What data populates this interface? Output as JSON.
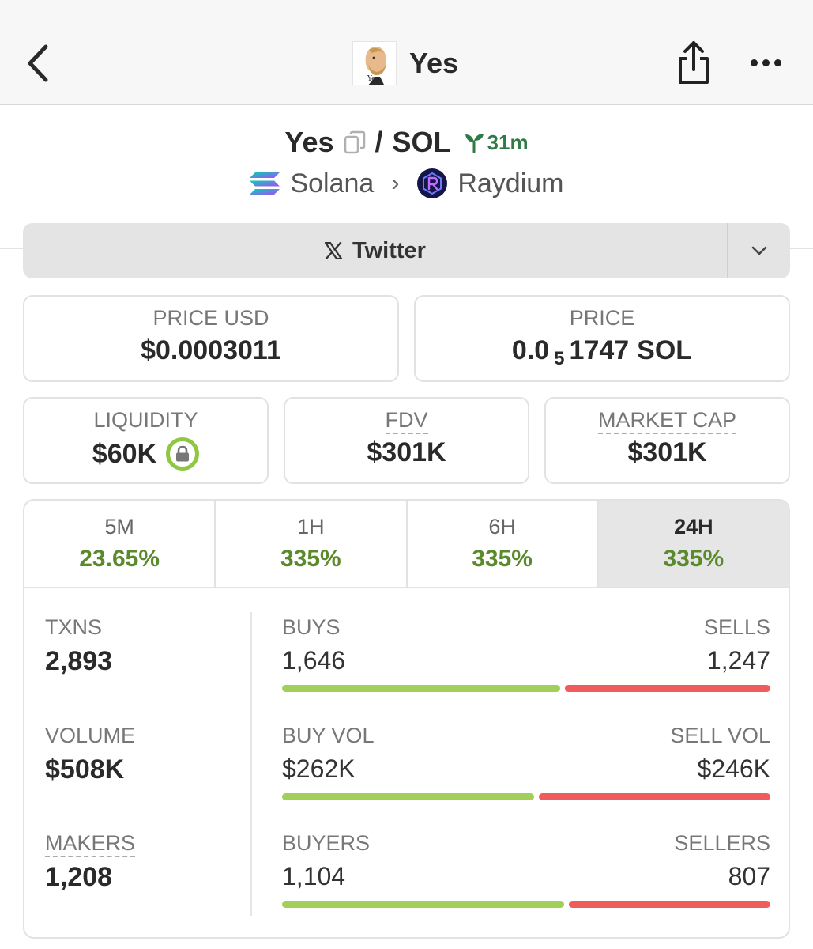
{
  "header": {
    "title": "Yes",
    "avatar_caption": "Yes."
  },
  "pair": {
    "base": "Yes",
    "separator": "/",
    "quote": "SOL",
    "age": "31m",
    "chain": "Solana",
    "dex": "Raydium"
  },
  "twitter": {
    "label": "Twitter"
  },
  "price_usd": {
    "label": "PRICE USD",
    "value": "$0.0003011"
  },
  "price": {
    "label": "PRICE",
    "prefix": "0.0",
    "zeros": "5",
    "digits": "1747",
    "unit": "SOL"
  },
  "liquidity": {
    "label": "LIQUIDITY",
    "value": "$60K"
  },
  "fdv": {
    "label": "FDV",
    "value": "$301K"
  },
  "market_cap": {
    "label": "MARKET CAP",
    "value": "$301K"
  },
  "timeframes": [
    {
      "label": "5M",
      "change": "23.65%"
    },
    {
      "label": "1H",
      "change": "335%"
    },
    {
      "label": "6H",
      "change": "335%"
    },
    {
      "label": "24H",
      "change": "335%",
      "active": true
    }
  ],
  "stats": {
    "txns": {
      "label": "TXNS",
      "value": "2,893"
    },
    "volume": {
      "label": "VOLUME",
      "value": "$508K"
    },
    "makers": {
      "label": "MAKERS",
      "value": "1,208"
    },
    "buys": {
      "label": "BUYS",
      "value": "1,646"
    },
    "sells": {
      "label": "SELLS",
      "value": "1,247"
    },
    "buy_vol": {
      "label": "BUY VOL",
      "value": "$262K"
    },
    "sell_vol": {
      "label": "SELL VOL",
      "value": "$246K"
    },
    "buyers": {
      "label": "BUYERS",
      "value": "1,104"
    },
    "sellers": {
      "label": "SELLERS",
      "value": "807"
    }
  },
  "ratios": {
    "txns_buy_share": 0.569,
    "volume_buy_share": 0.516,
    "makers_buy_share": 0.578
  },
  "colors": {
    "positive": "#5a8a2c",
    "buy_bar": "#a2cf5a",
    "sell_bar": "#ee5c5c",
    "age_green": "#2f7a45",
    "lock_ring": "#8fc642"
  },
  "icons": {
    "back": "chevron-left-icon",
    "share": "share-icon",
    "more": "more-horizontal-icon",
    "copy": "copy-icon",
    "age": "seedling-icon",
    "chain": "solana-logo-icon",
    "dex": "raydium-logo-icon",
    "twitter": "x-logo-icon",
    "dropdown": "chevron-down-icon",
    "lock": "lock-icon"
  }
}
